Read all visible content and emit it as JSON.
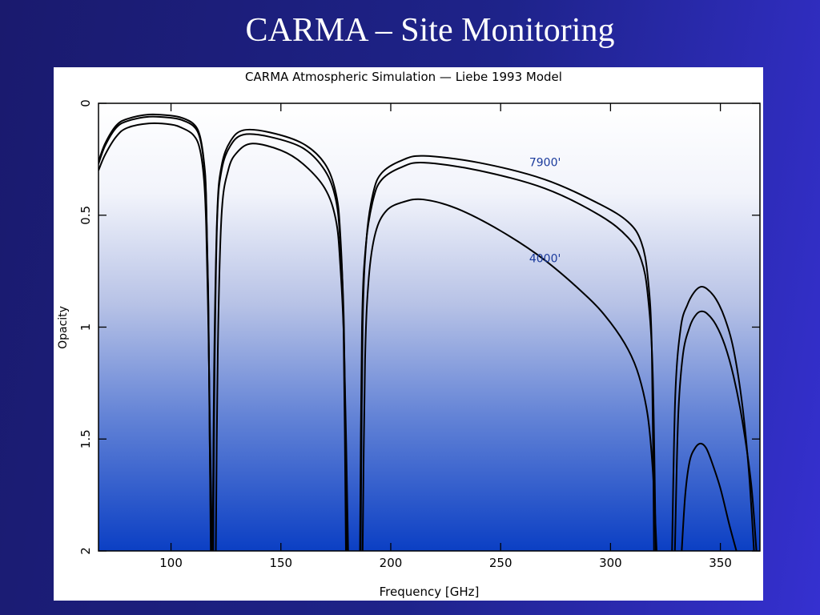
{
  "slide": {
    "title": "CARMA – Site Monitoring"
  },
  "chart_data": {
    "type": "line",
    "title": "CARMA Atmospheric Simulation — Liebe 1993 Model",
    "xlabel": "Frequency [GHz]",
    "ylabel": "Opacity",
    "xlim": [
      67,
      368
    ],
    "ylim": [
      2,
      0
    ],
    "y_axis_inverted": true,
    "grid": false,
    "x_ticks": [
      100,
      150,
      200,
      250,
      300,
      350
    ],
    "y_ticks": [
      0,
      0.5,
      1,
      1.5,
      2
    ],
    "y_tick_labels": [
      "0",
      "0.5",
      "1",
      "1.5",
      "2"
    ],
    "annotations": [
      {
        "text": "7900'",
        "x": 263,
        "y": 0.28,
        "color": "#1a3a9c"
      },
      {
        "text": "4000'",
        "x": 263,
        "y": 0.71,
        "color": "#1a3a9c"
      }
    ],
    "series": [
      {
        "segments": [
          {
            "x": [
              67,
              70,
              75,
              80,
              90,
              100,
              105,
              110,
              113,
              115,
              116,
              117,
              117.6,
              118.1
            ],
            "y": [
              0.26,
              0.18,
              0.1,
              0.07,
              0.05,
              0.055,
              0.065,
              0.09,
              0.14,
              0.26,
              0.42,
              0.9,
              1.5,
              2.0
            ]
          },
          {
            "x": [
              119.0,
              119.6,
              121,
              123,
              127,
              133,
              145,
              160,
              170,
              175,
              177,
              178.5,
              179.6
            ],
            "y": [
              2.0,
              1.2,
              0.5,
              0.28,
              0.17,
              0.12,
              0.13,
              0.18,
              0.27,
              0.4,
              0.58,
              1.0,
              2.0
            ]
          },
          {
            "x": [
              186.3,
              187.2,
              189,
              192,
              196,
              205,
              215,
              240,
              270,
              295,
              308,
              314,
              317,
              318.8,
              319.8
            ],
            "y": [
              2.0,
              1.0,
              0.6,
              0.4,
              0.31,
              0.255,
              0.235,
              0.265,
              0.34,
              0.45,
              0.53,
              0.62,
              0.78,
              1.1,
              2.0
            ]
          },
          {
            "x": [
              328.0,
              329.5,
              332,
              335,
              338,
              341,
              344,
              348,
              352,
              356,
              360,
              363,
              365.3
            ],
            "y": [
              2.0,
              1.3,
              1.0,
              0.9,
              0.845,
              0.82,
              0.83,
              0.875,
              0.96,
              1.1,
              1.35,
              1.65,
              2.0
            ]
          }
        ]
      },
      {
        "segments": [
          {
            "x": [
              67,
              70,
              75,
              80,
              90,
              100,
              105,
              110,
              113,
              115,
              116,
              117,
              117.6,
              118.3
            ],
            "y": [
              0.27,
              0.19,
              0.11,
              0.08,
              0.06,
              0.065,
              0.075,
              0.1,
              0.15,
              0.27,
              0.44,
              0.92,
              1.5,
              2.0
            ]
          },
          {
            "x": [
              119.2,
              119.8,
              121,
              123,
              127,
              133,
              145,
              160,
              170,
              175,
              177,
              178.7,
              180.0
            ],
            "y": [
              2.0,
              1.2,
              0.52,
              0.3,
              0.19,
              0.14,
              0.15,
              0.2,
              0.3,
              0.43,
              0.62,
              1.0,
              2.0
            ]
          },
          {
            "x": [
              186.0,
              186.9,
              188.7,
              192,
              196,
              205,
              215,
              240,
              270,
              295,
              308,
              314,
              317,
              319.2,
              320.6
            ],
            "y": [
              2.0,
              1.0,
              0.63,
              0.43,
              0.34,
              0.285,
              0.265,
              0.3,
              0.38,
              0.5,
              0.6,
              0.7,
              0.86,
              1.2,
              2.0
            ]
          },
          {
            "x": [
              329.3,
              330.8,
              333,
              336,
              338.5,
              341,
              344,
              348,
              352,
              356,
              360,
              364,
              366.4
            ],
            "y": [
              2.0,
              1.4,
              1.12,
              1.0,
              0.95,
              0.93,
              0.94,
              0.99,
              1.08,
              1.22,
              1.42,
              1.7,
              2.0
            ]
          }
        ]
      },
      {
        "segments": [
          {
            "x": [
              67,
              70,
              75,
              80,
              90,
              100,
              105,
              110,
              113,
              115,
              116,
              117,
              117.8,
              118.7
            ],
            "y": [
              0.3,
              0.23,
              0.15,
              0.11,
              0.09,
              0.095,
              0.11,
              0.14,
              0.2,
              0.34,
              0.55,
              1.0,
              1.5,
              2.0
            ]
          },
          {
            "x": [
              120.4,
              121.3,
              123,
              126,
              130,
              137,
              150,
              160,
              170,
              175,
              177,
              178.8,
              180.6
            ],
            "y": [
              2.0,
              1.1,
              0.5,
              0.3,
              0.22,
              0.18,
              0.21,
              0.27,
              0.38,
              0.52,
              0.72,
              1.1,
              2.0
            ]
          },
          {
            "x": [
              187.2,
              188.3,
              190,
              193,
              198,
              206,
              215,
              230,
              250,
              270,
              290,
              300,
              308,
              313,
              317,
              319.3,
              321.0
            ],
            "y": [
              2.0,
              1.15,
              0.78,
              0.58,
              0.48,
              0.44,
              0.43,
              0.47,
              0.57,
              0.7,
              0.87,
              0.98,
              1.1,
              1.22,
              1.4,
              1.65,
              2.0
            ]
          },
          {
            "x": [
              332.4,
              334,
              336,
              338.5,
              341,
              343.5,
              346,
              350,
              354,
              357.3
            ],
            "y": [
              2.0,
              1.75,
              1.6,
              1.54,
              1.52,
              1.54,
              1.6,
              1.72,
              1.88,
              2.0
            ]
          }
        ]
      }
    ]
  }
}
